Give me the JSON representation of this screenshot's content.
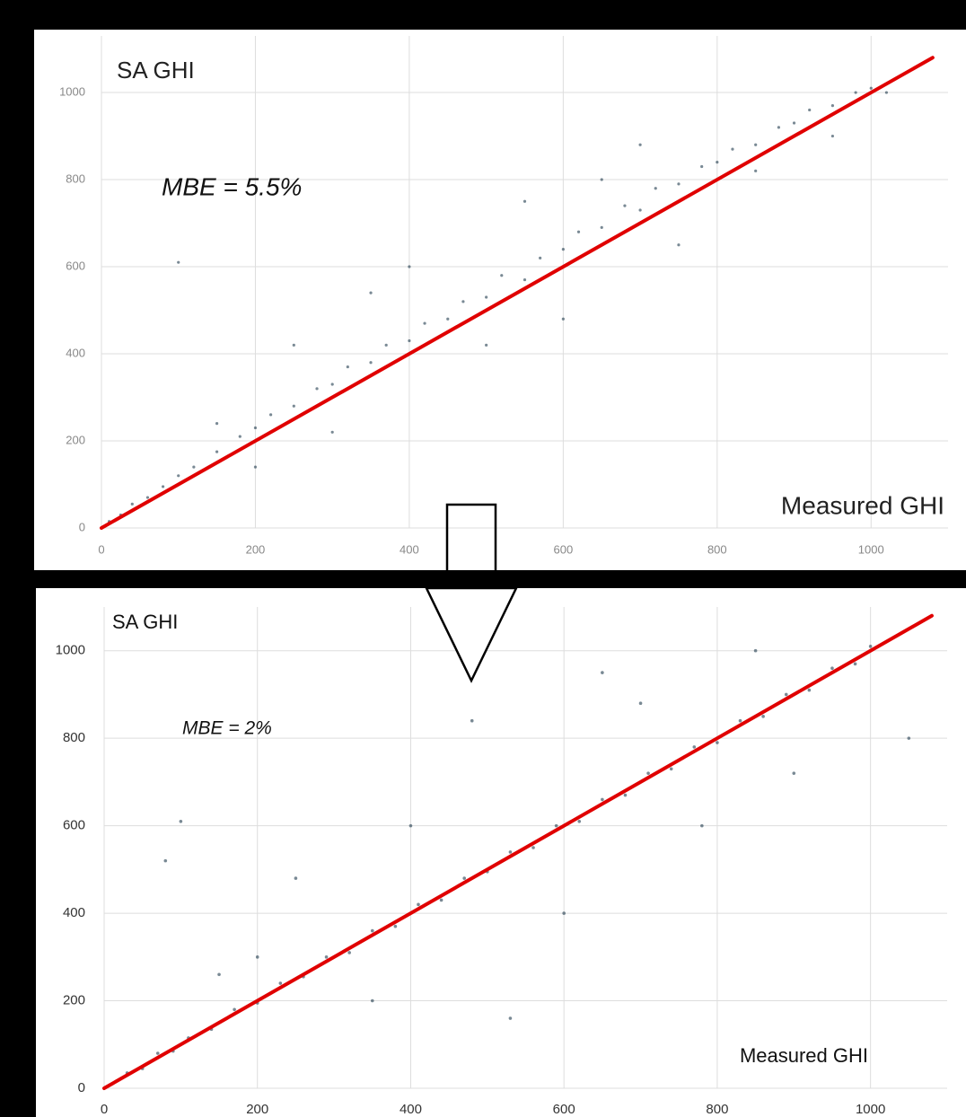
{
  "chart_data": [
    {
      "type": "scatter",
      "ylabel": "SA GHI",
      "xlabel": "Measured GHI",
      "annotation": "MBE = 5.5%",
      "xlim": [
        0,
        1100
      ],
      "ylim": [
        0,
        1130
      ],
      "xticks": [
        0,
        200,
        400,
        600,
        800,
        1000
      ],
      "yticks": [
        0,
        200,
        400,
        600,
        800,
        1000
      ],
      "grid": true,
      "series": [
        {
          "type": "scatter",
          "color": "#1f3a4d",
          "x": [
            10,
            25,
            40,
            60,
            80,
            100,
            120,
            150,
            180,
            200,
            220,
            250,
            280,
            300,
            320,
            350,
            370,
            400,
            420,
            450,
            470,
            500,
            520,
            550,
            570,
            600,
            620,
            650,
            680,
            700,
            720,
            750,
            780,
            800,
            820,
            850,
            880,
            900,
            920,
            950,
            980,
            1000,
            100,
            150,
            250,
            400,
            550,
            650,
            600,
            750,
            850,
            300,
            200,
            500,
            1020,
            950,
            700,
            350
          ],
          "values": [
            15,
            30,
            55,
            70,
            95,
            120,
            140,
            175,
            210,
            230,
            260,
            280,
            320,
            330,
            370,
            380,
            420,
            430,
            470,
            480,
            520,
            530,
            580,
            570,
            620,
            640,
            680,
            690,
            740,
            730,
            780,
            790,
            830,
            840,
            870,
            880,
            920,
            930,
            960,
            970,
            1000,
            1010,
            610,
            240,
            420,
            600,
            750,
            800,
            480,
            650,
            820,
            220,
            140,
            420,
            1000,
            900,
            880,
            540
          ]
        },
        {
          "type": "line",
          "color": "#e00000",
          "x": [
            0,
            1080
          ],
          "values": [
            0,
            1080
          ]
        }
      ]
    },
    {
      "type": "scatter",
      "ylabel": "SA GHI",
      "xlabel": "Measured GHI",
      "annotation": "MBE = 2%",
      "xlim": [
        0,
        1100
      ],
      "ylim": [
        0,
        1100
      ],
      "xticks": [
        0,
        200,
        400,
        600,
        800,
        1000
      ],
      "yticks": [
        0,
        200,
        400,
        600,
        800,
        1000
      ],
      "grid": true,
      "series": [
        {
          "type": "scatter",
          "color": "#1f3a4d",
          "x": [
            10,
            30,
            50,
            70,
            90,
            110,
            140,
            170,
            200,
            230,
            260,
            290,
            320,
            350,
            380,
            410,
            440,
            470,
            500,
            530,
            560,
            590,
            620,
            650,
            680,
            710,
            740,
            770,
            800,
            830,
            860,
            890,
            920,
            950,
            980,
            1000,
            100,
            80,
            480,
            650,
            530,
            250,
            400,
            600,
            780,
            900,
            1050,
            350,
            200,
            700,
            850,
            150
          ],
          "values": [
            10,
            35,
            45,
            80,
            85,
            115,
            135,
            180,
            195,
            240,
            255,
            300,
            310,
            360,
            370,
            420,
            430,
            480,
            495,
            540,
            550,
            600,
            610,
            660,
            670,
            720,
            730,
            780,
            790,
            840,
            850,
            900,
            910,
            960,
            970,
            1010,
            610,
            520,
            840,
            950,
            160,
            480,
            600,
            400,
            600,
            720,
            800,
            200,
            300,
            880,
            1000,
            260
          ]
        },
        {
          "type": "line",
          "color": "#e00000",
          "x": [
            0,
            1080
          ],
          "values": [
            0,
            1080
          ]
        }
      ]
    }
  ]
}
